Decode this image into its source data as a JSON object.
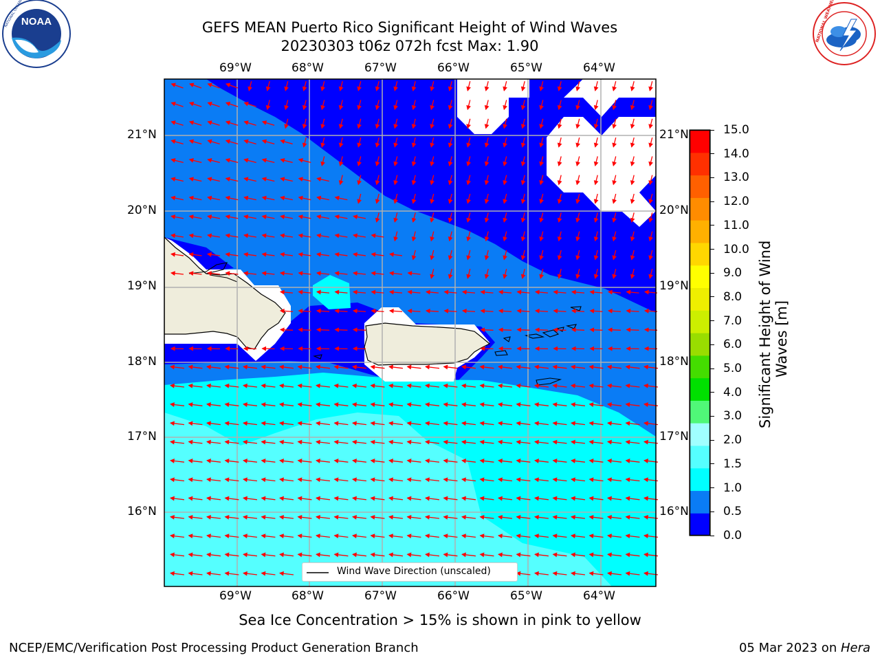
{
  "title_line1": "GEFS MEAN Puerto Rico Significant Height of Wind Waves",
  "title_line2": "20230303 t06z 072h fcst   Max: 1.90",
  "logos": {
    "noaa_text": "NOAA",
    "noaa_ring": "NATIONAL OCEANIC AND ATMOSPHERIC ADMINISTRATION · U.S. DEPARTMENT OF COMMERCE",
    "nws_ring": "NATIONAL WEATHER SERVICE"
  },
  "lon_labels": [
    "69°W",
    "68°W",
    "67°W",
    "66°W",
    "65°W",
    "64°W"
  ],
  "lat_labels": [
    "21°N",
    "20°N",
    "19°N",
    "18°N",
    "17°N",
    "16°N"
  ],
  "legend_label": "Wind Wave Direction (unscaled)",
  "colorbar": {
    "label_line1": "Significant Height of Wind",
    "label_line2": "Waves [m]",
    "ticks": [
      "0.0",
      "0.5",
      "1.0",
      "1.5",
      "2.0",
      "3.0",
      "4.0",
      "5.0",
      "6.0",
      "7.0",
      "8.0",
      "9.0",
      "10.0",
      "11.0",
      "12.0",
      "13.0",
      "14.0",
      "15.0"
    ],
    "colors": [
      "#0000ff",
      "#0a7cf5",
      "#00ffff",
      "#55ffff",
      "#a0ffff",
      "#50f878",
      "#00e000",
      "#44dd00",
      "#99dd00",
      "#ccee00",
      "#eeee00",
      "#ffff00",
      "#ffd700",
      "#ffb000",
      "#ff8c00",
      "#ff6000",
      "#ff3000",
      "#ff0000"
    ]
  },
  "note": "Sea Ice Concentration > 15% is shown in pink to yellow",
  "footer_left": "NCEP/EMC/Verification Post Processing Product Generation Branch",
  "footer_right_date": "05 Mar 2023 on ",
  "footer_right_host": "Hera",
  "colors": {
    "land": "#efeddc",
    "arrow": "#ff0000",
    "grid": "#b0b0b0"
  }
}
